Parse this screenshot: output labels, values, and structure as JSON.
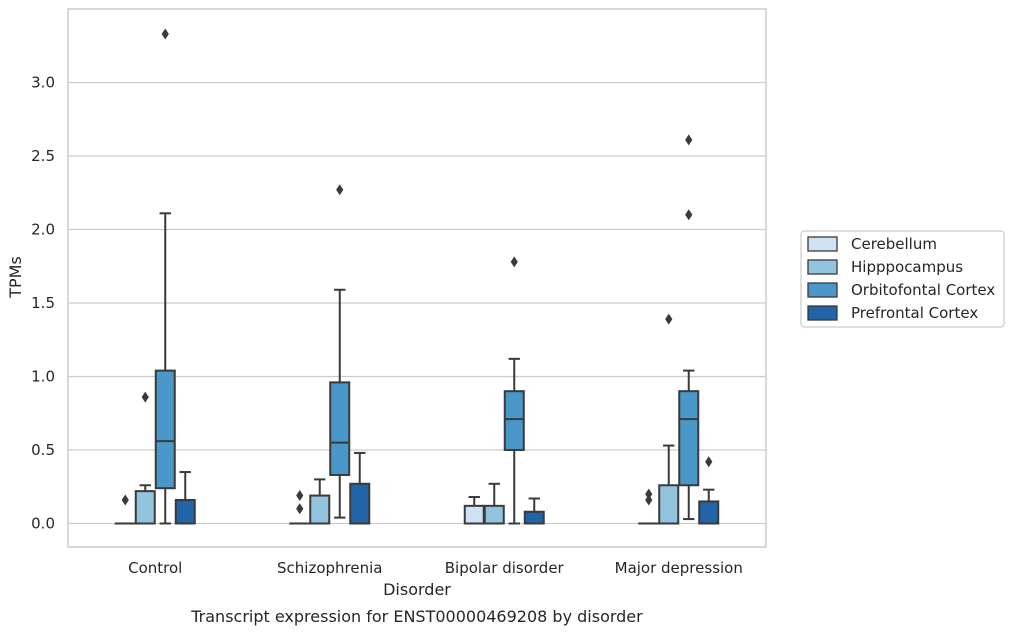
{
  "chart_data": {
    "type": "boxplot",
    "title": "",
    "caption": "Transcript expression for ENST00000469208 by disorder",
    "xlabel": "Disorder",
    "ylabel": "TPMs",
    "ylim": [
      -0.16,
      3.5
    ],
    "yticks": [
      0.0,
      0.5,
      1.0,
      1.5,
      2.0,
      2.5,
      3.0
    ],
    "ytick_labels": [
      "0.0",
      "0.5",
      "1.0",
      "1.5",
      "2.0",
      "2.5",
      "3.0"
    ],
    "grid": "horizontal",
    "legend_position": "right",
    "categories": [
      "Control",
      "Schizophrenia",
      "Bipolar disorder",
      "Major depression"
    ],
    "series": [
      {
        "name": "Cerebellum",
        "color": "#cfe1f2",
        "boxes": [
          {
            "whislo": 0.0,
            "q1": 0.0,
            "med": 0.0,
            "q3": 0.0,
            "whishi": 0.0,
            "fliers": [
              0.16
            ]
          },
          {
            "whislo": 0.0,
            "q1": 0.0,
            "med": 0.0,
            "q3": 0.0,
            "whishi": 0.0,
            "fliers": [
              0.1,
              0.19
            ]
          },
          {
            "whislo": 0.0,
            "q1": 0.0,
            "med": 0.0,
            "q3": 0.12,
            "whishi": 0.18,
            "fliers": []
          },
          {
            "whislo": 0.0,
            "q1": 0.0,
            "med": 0.0,
            "q3": 0.0,
            "whishi": 0.0,
            "fliers": [
              0.16,
              0.2
            ]
          }
        ]
      },
      {
        "name": "Hipppocampus",
        "color": "#93c4de",
        "boxes": [
          {
            "whislo": 0.0,
            "q1": 0.0,
            "med": 0.0,
            "q3": 0.22,
            "whishi": 0.26,
            "fliers": [
              0.86
            ]
          },
          {
            "whislo": 0.0,
            "q1": 0.0,
            "med": 0.0,
            "q3": 0.19,
            "whishi": 0.3,
            "fliers": []
          },
          {
            "whislo": 0.0,
            "q1": 0.0,
            "med": 0.0,
            "q3": 0.12,
            "whishi": 0.27,
            "fliers": []
          },
          {
            "whislo": 0.0,
            "q1": 0.0,
            "med": 0.0,
            "q3": 0.26,
            "whishi": 0.53,
            "fliers": [
              1.39
            ]
          }
        ]
      },
      {
        "name": "Orbitofontal Cortex",
        "color": "#4a98c9",
        "boxes": [
          {
            "whislo": 0.0,
            "q1": 0.24,
            "med": 0.56,
            "q3": 1.04,
            "whishi": 2.11,
            "fliers": [
              3.33
            ]
          },
          {
            "whislo": 0.04,
            "q1": 0.33,
            "med": 0.55,
            "q3": 0.96,
            "whishi": 1.59,
            "fliers": [
              2.27
            ]
          },
          {
            "whislo": 0.0,
            "q1": 0.5,
            "med": 0.71,
            "q3": 0.9,
            "whishi": 1.12,
            "fliers": [
              1.78
            ]
          },
          {
            "whislo": 0.03,
            "q1": 0.26,
            "med": 0.71,
            "q3": 0.9,
            "whishi": 1.04,
            "fliers": [
              2.1,
              2.61
            ]
          }
        ]
      },
      {
        "name": "Prefrontal Cortex",
        "color": "#2264a8",
        "boxes": [
          {
            "whislo": 0.0,
            "q1": 0.0,
            "med": 0.0,
            "q3": 0.16,
            "whishi": 0.35,
            "fliers": []
          },
          {
            "whislo": 0.0,
            "q1": 0.0,
            "med": 0.0,
            "q3": 0.27,
            "whishi": 0.48,
            "fliers": []
          },
          {
            "whislo": 0.0,
            "q1": 0.0,
            "med": 0.0,
            "q3": 0.08,
            "whishi": 0.17,
            "fliers": []
          },
          {
            "whislo": 0.0,
            "q1": 0.0,
            "med": 0.0,
            "q3": 0.15,
            "whishi": 0.23,
            "fliers": [
              0.42
            ]
          }
        ]
      }
    ]
  }
}
